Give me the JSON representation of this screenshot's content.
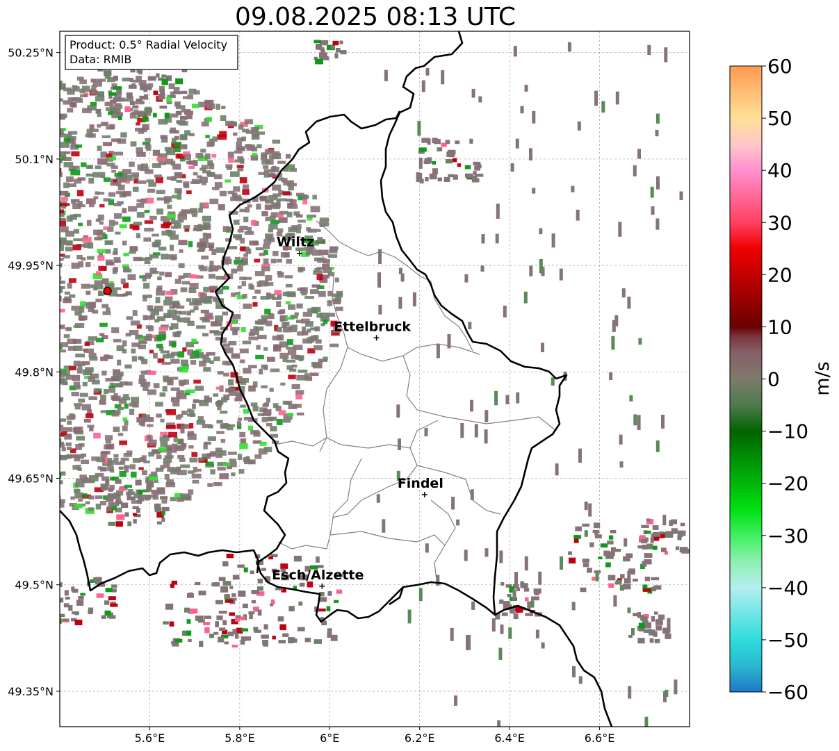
{
  "title": "09.08.2025 08:13 UTC",
  "info_box": {
    "product": "Product: 0.5° Radial Velocity",
    "data_source": "Data: RMIB"
  },
  "map": {
    "extent": {
      "lon": [
        5.4,
        6.8
      ],
      "lat": [
        49.3,
        50.28
      ]
    },
    "lat_ticks": [
      {
        "value": 50.25,
        "label": "50.25°N"
      },
      {
        "value": 50.1,
        "label": "50.1°N"
      },
      {
        "value": 49.95,
        "label": "49.95°N"
      },
      {
        "value": 49.8,
        "label": "49.8°N"
      },
      {
        "value": 49.65,
        "label": "49.65°N"
      },
      {
        "value": 49.5,
        "label": "49.5°N"
      },
      {
        "value": 49.35,
        "label": "49.35°N"
      }
    ],
    "lon_ticks": [
      {
        "value": 5.6,
        "label": "5.6°E"
      },
      {
        "value": 5.8,
        "label": "5.8°E"
      },
      {
        "value": 6.0,
        "label": "6°E"
      },
      {
        "value": 6.2,
        "label": "6.2°E"
      },
      {
        "value": 6.4,
        "label": "6.4°E"
      },
      {
        "value": 6.6,
        "label": "6.6°E"
      }
    ],
    "radar_site": {
      "lon": 5.506,
      "lat": 49.914
    },
    "cities": [
      {
        "name": "Wiltz",
        "lon": 5.933,
        "lat": 49.967
      },
      {
        "name": "Ettelbruck",
        "lon": 6.104,
        "lat": 49.848
      },
      {
        "name": "Findel",
        "lon": 6.211,
        "lat": 49.627
      },
      {
        "name": "Esch/Alzette",
        "lon": 5.983,
        "lat": 49.498
      }
    ],
    "gridlines": true
  },
  "colorbar": {
    "unit": "m/s",
    "range": [
      -60,
      60
    ],
    "ticks": [
      {
        "value": 60,
        "label": "60"
      },
      {
        "value": 50,
        "label": "50"
      },
      {
        "value": 40,
        "label": "40"
      },
      {
        "value": 30,
        "label": "30"
      },
      {
        "value": 20,
        "label": "20"
      },
      {
        "value": 10,
        "label": "10"
      },
      {
        "value": 0,
        "label": "0"
      },
      {
        "value": -10,
        "label": "−10"
      },
      {
        "value": -20,
        "label": "−20"
      },
      {
        "value": -30,
        "label": "−30"
      },
      {
        "value": -40,
        "label": "−40"
      },
      {
        "value": -50,
        "label": "−50"
      },
      {
        "value": -60,
        "label": "−60"
      }
    ],
    "stops": [
      {
        "value": -60,
        "color": "#1f78c4"
      },
      {
        "value": -55,
        "color": "#2ab7d0"
      },
      {
        "value": -50,
        "color": "#2fdcdc"
      },
      {
        "value": -40,
        "color": "#b4eef0"
      },
      {
        "value": -35,
        "color": "#8ef0b0"
      },
      {
        "value": -30,
        "color": "#3ef060"
      },
      {
        "value": -25,
        "color": "#00e010"
      },
      {
        "value": -10,
        "color": "#006400"
      },
      {
        "value": -5,
        "color": "#4e7a4e"
      },
      {
        "value": 0,
        "color": "#7d7a6a"
      },
      {
        "value": 5,
        "color": "#866068"
      },
      {
        "value": 8,
        "color": "#7a3a40"
      },
      {
        "value": 10,
        "color": "#6a0000"
      },
      {
        "value": 25,
        "color": "#f00000"
      },
      {
        "value": 30,
        "color": "#ff4060"
      },
      {
        "value": 40,
        "color": "#ff90d0"
      },
      {
        "value": 45,
        "color": "#ffc8c8"
      },
      {
        "value": 50,
        "color": "#ffe098"
      },
      {
        "value": 60,
        "color": "#ff9a50"
      }
    ]
  },
  "legend_colors": {
    "border": "#000000",
    "district": "#808080",
    "radar_site": "#e00000",
    "background": "#ffffff"
  }
}
